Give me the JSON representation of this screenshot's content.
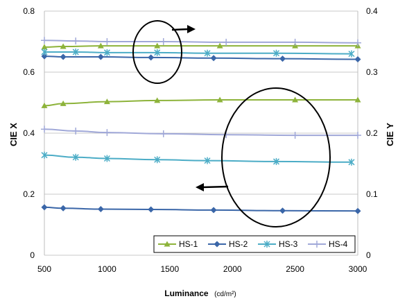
{
  "chart_data": {
    "type": "line",
    "xlabel": "Luminance",
    "xlabel_unit": "(cd/m²)",
    "ylabel_left": "CIE X",
    "ylabel_right": "CIE Y",
    "xlim": [
      500,
      3000
    ],
    "ylim_left": [
      0,
      0.8
    ],
    "ylim_right": [
      0,
      0.4
    ],
    "x_ticks": [
      "500",
      "1000",
      "1500",
      "2000",
      "2500",
      "3000"
    ],
    "y_left_ticks": [
      "0",
      "0.2",
      "0.4",
      "0.6",
      "0.8"
    ],
    "y_right_ticks": [
      "0",
      "0.1",
      "0.2",
      "0.3",
      "0.4"
    ],
    "grid": "horizontal",
    "legend_position": "bottom-right",
    "annotations": [
      "circle with arrow pointing right (upper curves read on CIE Y axis)",
      "circle with arrow pointing left (lower curves read on CIE X axis)"
    ],
    "series": [
      {
        "name": "HS-1",
        "axis": "left",
        "color": "#8db33a",
        "marker": "triangle",
        "x": [
          500,
          650,
          1000,
          1400,
          1900,
          2500,
          3000
        ],
        "y": [
          0.49,
          0.497,
          0.503,
          0.507,
          0.509,
          0.509,
          0.509
        ]
      },
      {
        "name": "HS-2",
        "axis": "left",
        "color": "#3a66a8",
        "marker": "diamond",
        "x": [
          500,
          650,
          950,
          1350,
          1850,
          2400,
          3000
        ],
        "y": [
          0.157,
          0.154,
          0.151,
          0.15,
          0.148,
          0.146,
          0.145
        ]
      },
      {
        "name": "HS-3",
        "axis": "left",
        "color": "#4bacc6",
        "marker": "asterisk",
        "x": [
          500,
          750,
          1000,
          1400,
          1800,
          2350,
          2950
        ],
        "y": [
          0.328,
          0.321,
          0.317,
          0.313,
          0.31,
          0.307,
          0.305
        ]
      },
      {
        "name": "HS-4",
        "axis": "left",
        "color": "#a0a8d8",
        "marker": "plus",
        "x": [
          500,
          750,
          1000,
          1450,
          1950,
          2500,
          3000
        ],
        "y": [
          0.413,
          0.407,
          0.402,
          0.398,
          0.395,
          0.393,
          0.393
        ]
      },
      {
        "name": "HS-1",
        "axis": "right",
        "color": "#8db33a",
        "marker": "triangle",
        "x": [
          500,
          650,
          950,
          1400,
          1900,
          2500,
          3000
        ],
        "y": [
          0.341,
          0.342,
          0.343,
          0.343,
          0.343,
          0.343,
          0.343
        ]
      },
      {
        "name": "HS-2",
        "axis": "right",
        "color": "#3a66a8",
        "marker": "diamond",
        "x": [
          500,
          650,
          950,
          1350,
          1850,
          2400,
          3000
        ],
        "y": [
          0.326,
          0.325,
          0.325,
          0.324,
          0.323,
          0.322,
          0.321
        ]
      },
      {
        "name": "HS-3",
        "axis": "right",
        "color": "#4bacc6",
        "marker": "asterisk",
        "x": [
          500,
          750,
          1000,
          1400,
          1800,
          2350,
          2950
        ],
        "y": [
          0.333,
          0.333,
          0.332,
          0.332,
          0.331,
          0.331,
          0.33
        ]
      },
      {
        "name": "HS-4",
        "axis": "right",
        "color": "#a0a8d8",
        "marker": "plus",
        "x": [
          500,
          750,
          1000,
          1450,
          1950,
          2500,
          3000
        ],
        "y": [
          0.352,
          0.351,
          0.35,
          0.35,
          0.349,
          0.349,
          0.348
        ]
      }
    ]
  }
}
